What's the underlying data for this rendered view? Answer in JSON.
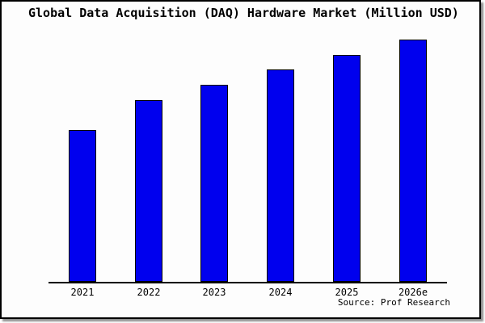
{
  "title": "Global Data Acquisition (DAQ) Hardware Market (Million USD)",
  "source_note": "Source: Prof Research",
  "colors": {
    "bar_fill": "#0000ee",
    "bar_border": "#000000",
    "axis": "#000000",
    "frame_border": "#000000",
    "frame_shadow": "#8f8f8f",
    "background": "#fdfdfd",
    "text": "#000000"
  },
  "chart_data": {
    "type": "bar",
    "title": "Global Data Acquisition (DAQ) Hardware Market (Million USD)",
    "categories": [
      "2021",
      "2022",
      "2023",
      "2024",
      "2025",
      "2026e"
    ],
    "values": [
      188,
      225,
      244,
      263,
      281,
      300
    ],
    "value_scale": "relative units estimated from bar heights; chart displays no y-axis, gridlines or value labels (tallest bar 2026e = 300)",
    "xlabel": "",
    "ylabel": "",
    "ylim": [
      0,
      320
    ],
    "grid": false,
    "legend": false,
    "bar_color": "#0000ee",
    "source_note": "Source: Prof Research"
  }
}
